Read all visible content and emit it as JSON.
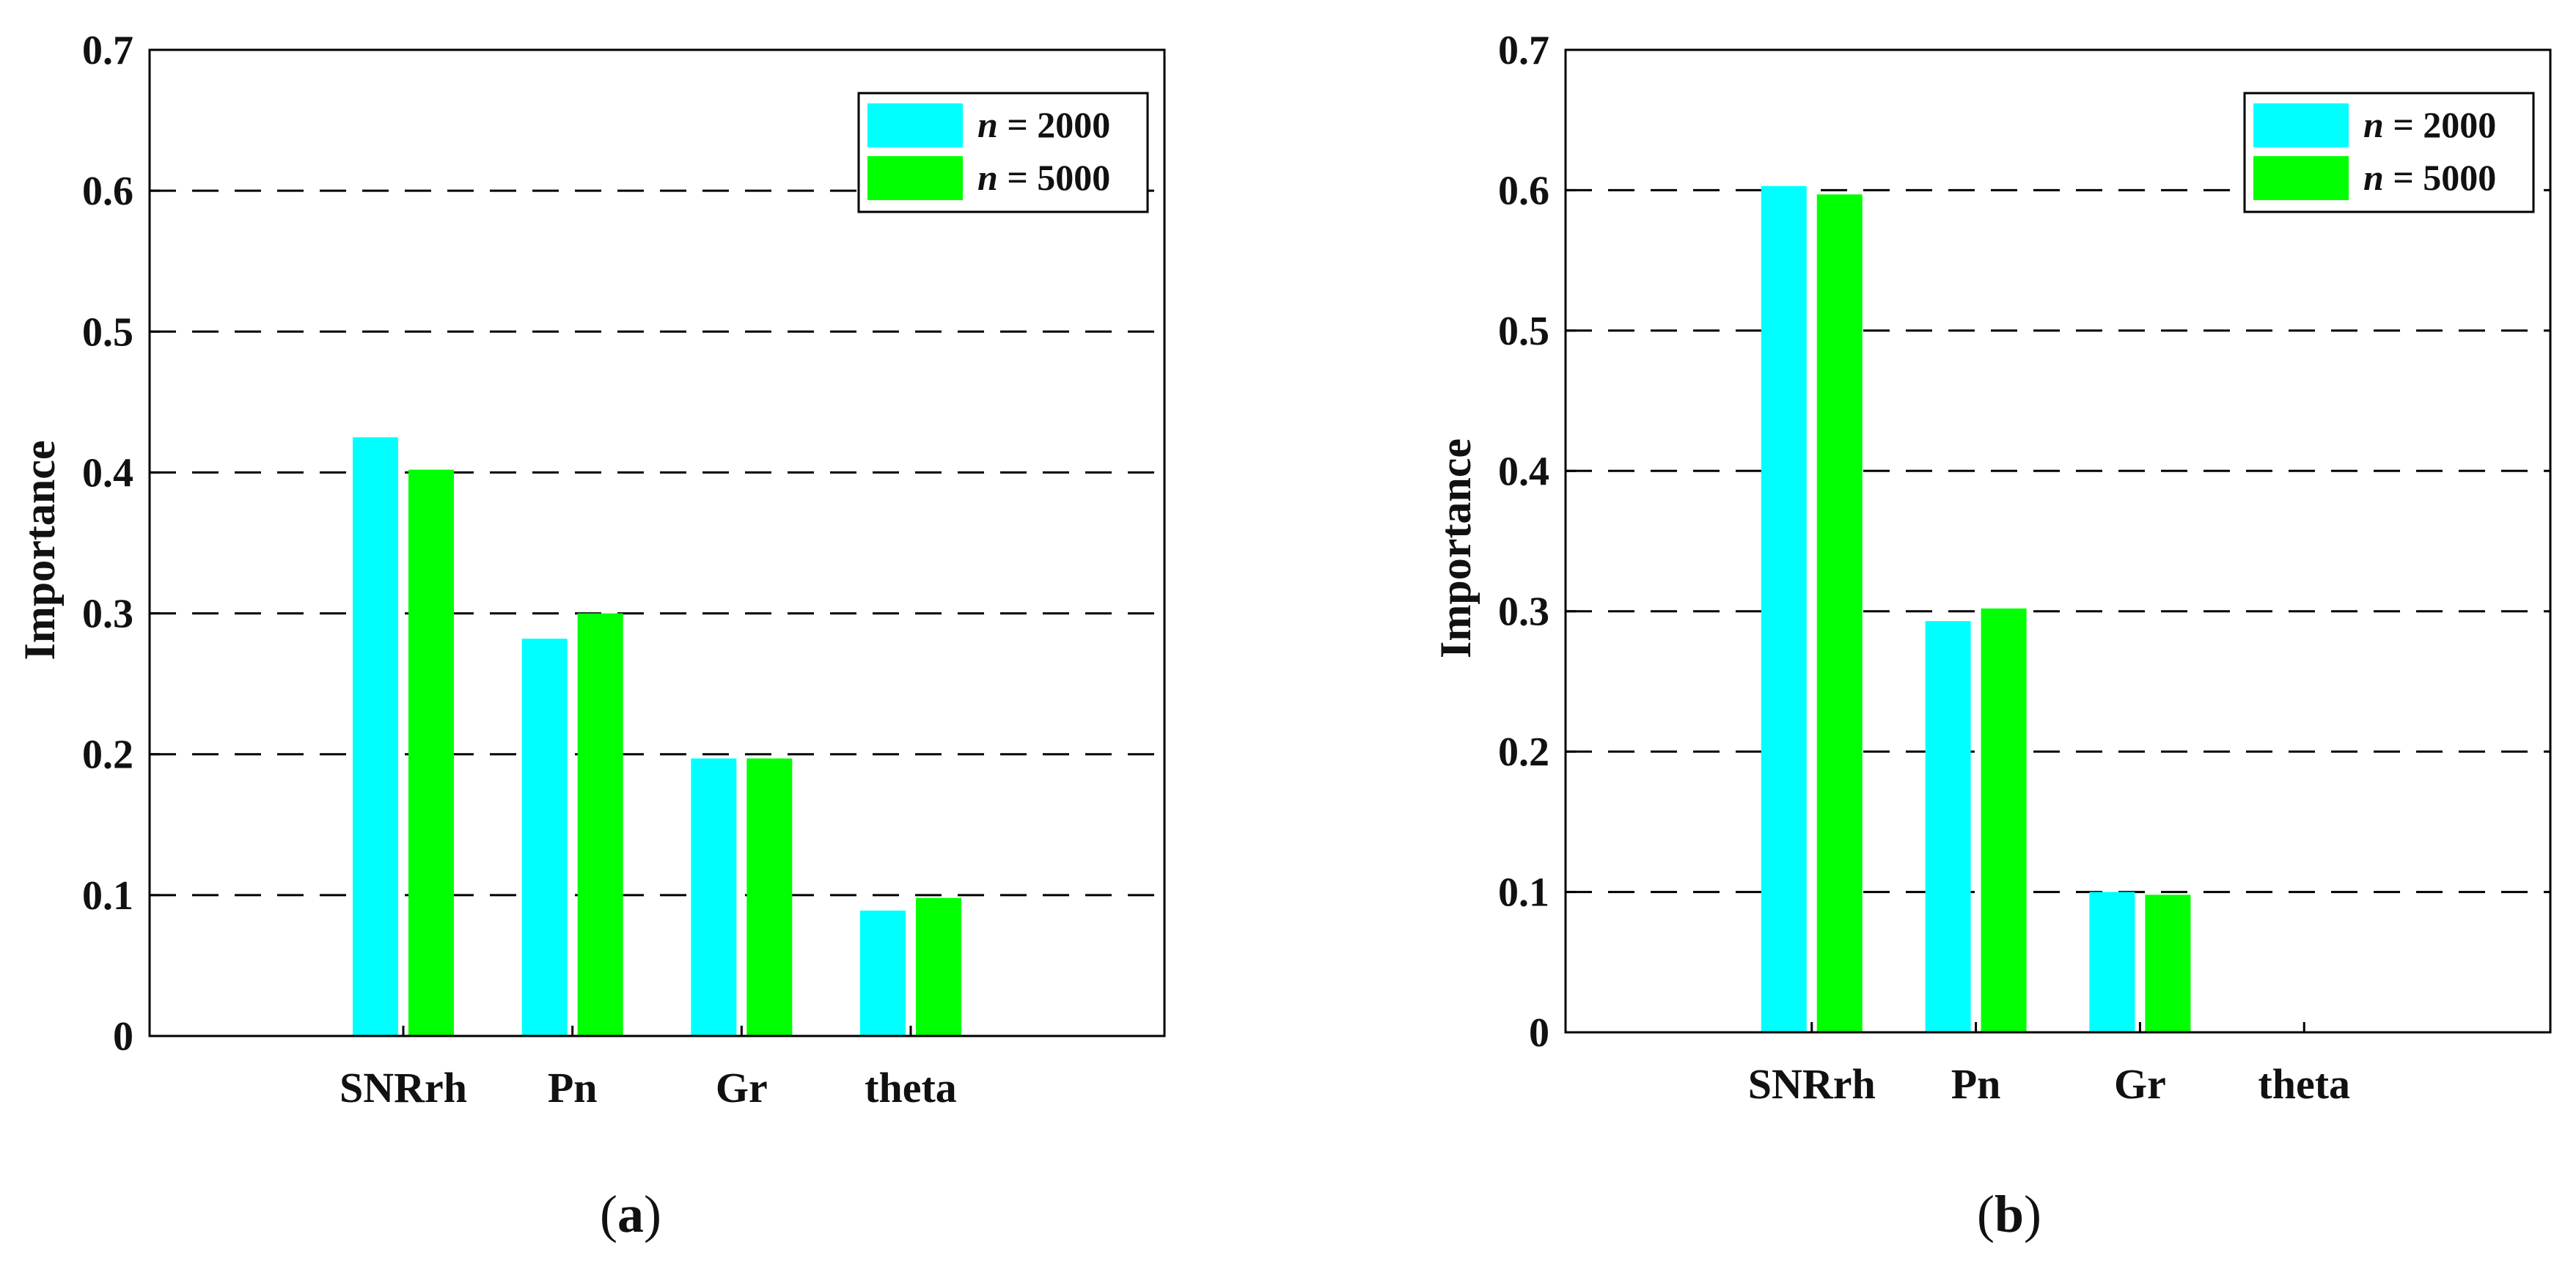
{
  "chart_data": [
    {
      "type": "bar",
      "panel": "a",
      "categories": [
        "SNRrh",
        "Pn",
        "Gr",
        "theta"
      ],
      "series": [
        {
          "name": "n = 2000",
          "italic_prefix": "n",
          "label_rest": " = 2000",
          "color": "#00FFFF",
          "values": [
            0.425,
            0.282,
            0.197,
            0.089
          ]
        },
        {
          "name": "n = 5000",
          "italic_prefix": "n",
          "label_rest": " = 5000",
          "color": "#00FF00",
          "values": [
            0.402,
            0.3,
            0.197,
            0.098
          ]
        }
      ],
      "ylabel": "Importance",
      "ylim": [
        0,
        0.7
      ],
      "yticks": [
        "0",
        "0.1",
        "0.2",
        "0.3",
        "0.4",
        "0.5",
        "0.6",
        "0.7"
      ],
      "grid": "horizontal dashed",
      "legend": "top-right",
      "caption_letter": "a"
    },
    {
      "type": "bar",
      "panel": "b",
      "categories": [
        "SNRrh",
        "Pn",
        "Gr",
        "theta"
      ],
      "series": [
        {
          "name": "n = 2000",
          "italic_prefix": "n",
          "label_rest": " = 2000",
          "color": "#00FFFF",
          "values": [
            0.603,
            0.293,
            0.1,
            0.0
          ]
        },
        {
          "name": "n = 5000",
          "italic_prefix": "n",
          "label_rest": " = 5000",
          "color": "#00FF00",
          "values": [
            0.597,
            0.302,
            0.098,
            0.0
          ]
        }
      ],
      "ylabel": "Importance",
      "ylim": [
        0,
        0.7
      ],
      "yticks": [
        "0",
        "0.1",
        "0.2",
        "0.3",
        "0.4",
        "0.5",
        "0.6",
        "0.7"
      ],
      "grid": "horizontal dashed",
      "legend": "top-right",
      "caption_letter": "b"
    }
  ]
}
